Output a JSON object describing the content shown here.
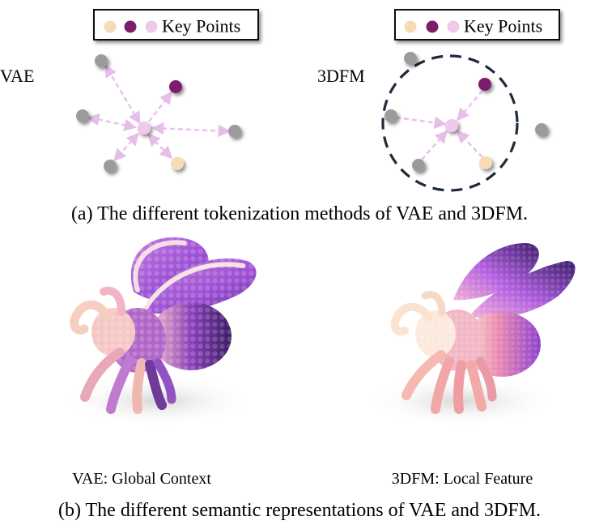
{
  "legend": {
    "label": "Key Points"
  },
  "panels": [
    {
      "method_label": "VAE"
    },
    {
      "method_label": "3DFM"
    }
  ],
  "caption_a": "(a) The different tokenization methods of VAE and 3DFM.",
  "render_labels": [
    {
      "text": "VAE: Global Context"
    },
    {
      "text": "3DFM: Local Feature"
    }
  ],
  "caption_b": "(b) The different semantic representations of VAE and 3DFM.",
  "colors": {
    "key_point_tan": "#f6dbb4",
    "key_point_purple": "#7c1e6a",
    "key_point_pink": "#efc9ea",
    "point_gray": "#9b9b9b",
    "arrow_pink": "#e8c4ec",
    "circle_navy": "#1d2b3a"
  }
}
